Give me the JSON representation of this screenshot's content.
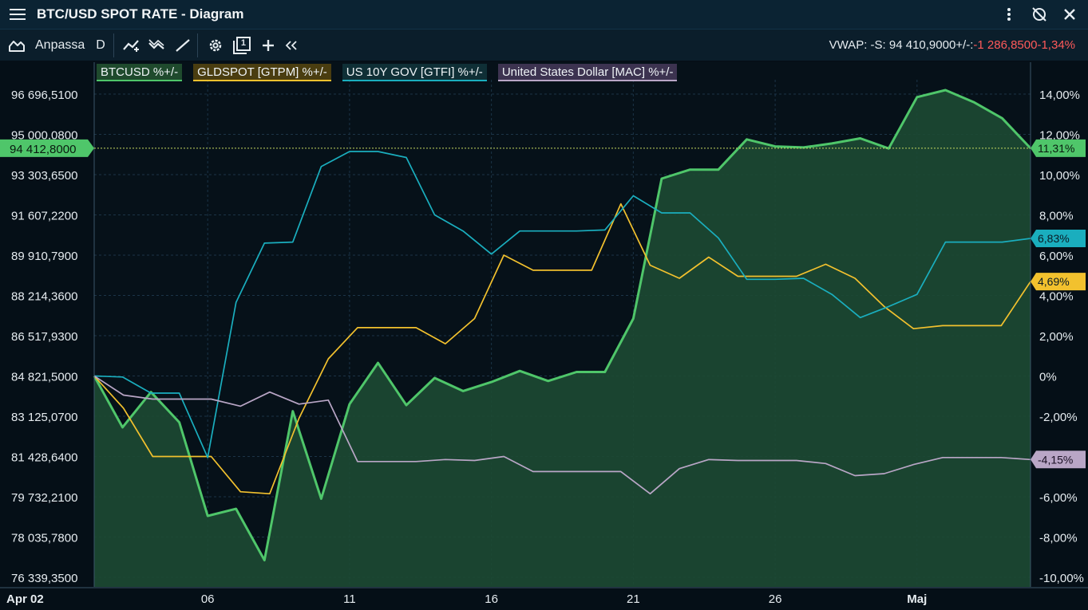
{
  "window": {
    "title": "BTC/USD SPOT RATE - Diagram",
    "menu_icon": "hamburger-menu-icon",
    "actions": [
      "more-vertical-icon",
      "unlink-icon",
      "close-icon"
    ]
  },
  "toolbar": {
    "chart_type_icon": "area-chart-icon",
    "customize_label": "Anpassa",
    "period_label": "D",
    "tools": [
      "add-indicator-icon",
      "compare-icon",
      "draw-line-icon",
      "settings-gear-icon",
      "window-number-icon",
      "crosshair-icon",
      "collapse-icon"
    ],
    "window_number": "1",
    "quote": {
      "vwap_text": "VWAP: -",
      "spot_text": "S: 94 410,9000",
      "change_label": "+/-:",
      "change_value": "-1 286,8500",
      "change_pct": "-1,34%"
    }
  },
  "colors": {
    "btc": "#4fc66a",
    "gold": "#f2c12e",
    "gov": "#1aaebe",
    "usd": "#b9a6c6",
    "negative": "#ff5a5a",
    "background": "#050f17"
  },
  "chart_data": {
    "type": "line",
    "title": "",
    "xlabel": "",
    "ylabel": "",
    "x_ticks": [
      "Apr 02",
      "06",
      "11",
      "16",
      "21",
      "26",
      "Maj"
    ],
    "x_tick_index": [
      0,
      4,
      9,
      14,
      19,
      24,
      29
    ],
    "left_axis": {
      "ticks": [
        "96 696,5100",
        "95 000,0800",
        "93 303,6500",
        "91 607,2200",
        "89 910,7900",
        "88 214,3600",
        "86 517,9300",
        "84 821,5000",
        "83 125,0700",
        "81 428,6400",
        "79 732,2100",
        "78 035,7800",
        "76 339,3500"
      ],
      "current_label": "94 412,8000",
      "current_value": 94412.8
    },
    "right_axis": {
      "ticks": [
        "14,00%",
        "12,00%",
        "10,00%",
        "8,00%",
        "6,00%",
        "4,00%",
        "2,00%",
        "0%",
        "-2,00%",
        "-4,00%",
        "-6,00%",
        "-8,00%",
        "-10,00%"
      ],
      "ylim": [
        -10,
        14
      ]
    },
    "series": [
      {
        "name": "BTCUSD %+/-",
        "key": "btc",
        "area": true,
        "end_label": "11,31%",
        "values": [
          0,
          -2.55,
          -0.8,
          -2.3,
          -6.95,
          -6.6,
          -9.15,
          -1.75,
          -6.1,
          -1.4,
          0.65,
          -1.45,
          -0.1,
          -0.75,
          -0.3,
          0.25,
          -0.25,
          0.2,
          0.2,
          2.85,
          9.8,
          10.25,
          10.25,
          11.75,
          11.4,
          11.35,
          11.55,
          11.8,
          11.3,
          13.85,
          14.2,
          13.6,
          12.8,
          11.31
        ]
      },
      {
        "name": "GLDSPOT [GTPM] %+/-",
        "key": "gold",
        "area": false,
        "end_label": "4,69%",
        "values": [
          0,
          -1.6,
          -4.0,
          -4.0,
          -4.0,
          -5.75,
          -5.85,
          -2.1,
          0.85,
          2.4,
          2.4,
          2.4,
          1.6,
          2.85,
          6.0,
          5.25,
          5.25,
          5.25,
          8.55,
          5.5,
          4.85,
          5.9,
          4.95,
          4.95,
          4.95,
          5.55,
          4.85,
          3.45,
          2.35,
          2.5,
          2.5,
          2.5,
          4.69
        ]
      },
      {
        "name": "US 10Y GOV [GTFI] %+/-",
        "key": "gov",
        "area": false,
        "end_label": "6,83%",
        "values": [
          0,
          -0.05,
          -0.85,
          -0.85,
          -4.05,
          3.65,
          6.6,
          6.65,
          10.4,
          11.15,
          11.15,
          10.85,
          8.0,
          7.2,
          6.05,
          7.2,
          7.2,
          7.2,
          7.25,
          8.95,
          8.1,
          8.1,
          6.85,
          4.8,
          4.8,
          4.85,
          4.05,
          2.9,
          3.45,
          4.05,
          6.65,
          6.65,
          6.65,
          6.83
        ]
      },
      {
        "name": "United States Dollar [MAC] %+/-",
        "key": "usd",
        "area": false,
        "end_label": "-4,15%",
        "values": [
          0,
          -0.95,
          -1.15,
          -1.15,
          -1.15,
          -1.5,
          -0.8,
          -1.4,
          -1.2,
          -4.25,
          -4.25,
          -4.25,
          -4.15,
          -4.2,
          -4.0,
          -4.75,
          -4.75,
          -4.75,
          -4.75,
          -5.85,
          -4.6,
          -4.15,
          -4.2,
          -4.2,
          -4.2,
          -4.35,
          -4.95,
          -4.85,
          -4.4,
          -4.05,
          -4.05,
          -4.05,
          -4.15
        ]
      }
    ],
    "grid": true,
    "legend_position": "top-left"
  }
}
